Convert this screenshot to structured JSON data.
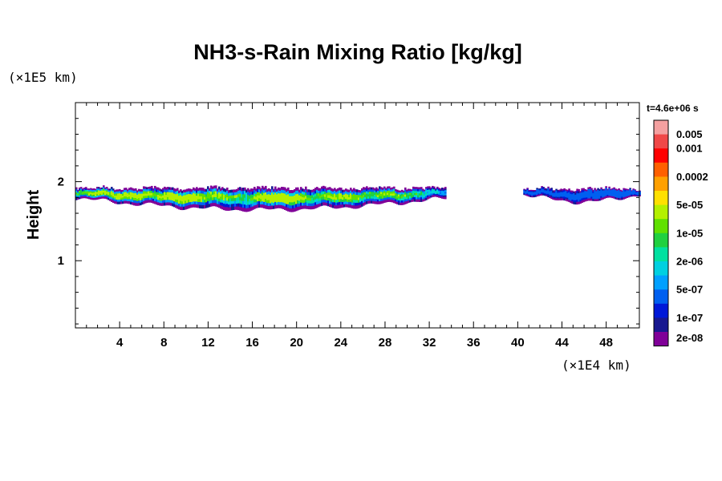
{
  "chart_data": {
    "type": "heatmap",
    "title": "NH3-s-Rain Mixing Ratio [kg/kg]",
    "ylabel": "Height",
    "xlabel": "",
    "x_unit": "(×1E4 km)",
    "y_unit": "(×1E5 km)",
    "time_label": "t=4.6e+06 s",
    "xlim": [
      0,
      51
    ],
    "ylim": [
      0.15,
      3.0
    ],
    "x_ticks": [
      4,
      8,
      12,
      16,
      20,
      24,
      28,
      32,
      36,
      40,
      44,
      48
    ],
    "x_tick_labels": [
      "4",
      "8",
      "12",
      "16",
      "20",
      "24",
      "28",
      "32",
      "36",
      "40",
      "44",
      "48"
    ],
    "y_ticks": [
      1,
      2
    ],
    "y_tick_labels": [
      "1",
      "2"
    ],
    "legend": {
      "labels": [
        "0.005",
        "0.001",
        "0.0002",
        "5e-05",
        "1e-05",
        "2e-06",
        "5e-07",
        "1e-07",
        "2e-08"
      ],
      "colors": [
        "#f4a0a0",
        "#f04848",
        "#ff0000",
        "#ff6000",
        "#ffa000",
        "#ffe000",
        "#b4f000",
        "#60e000",
        "#20d040",
        "#00e0a0",
        "#00d0e0",
        "#00a0ff",
        "#0060f0",
        "#0018d8",
        "#181890",
        "#800098"
      ]
    },
    "regions": [
      {
        "x_start": 0.0,
        "x_end": 33.5,
        "y_bottom": 1.65,
        "y_top": 1.97,
        "max_level": 6,
        "label": "main-band"
      },
      {
        "x_start": 40.5,
        "x_end": 51.0,
        "y_bottom": 1.75,
        "y_top": 1.96,
        "max_level": 12,
        "label": "right-band"
      }
    ],
    "hotspots": [
      {
        "x": 2.5,
        "y": 1.86,
        "level": 9
      },
      {
        "x": 5.0,
        "y": 1.83,
        "level": 8
      },
      {
        "x": 9.5,
        "y": 1.8,
        "level": 7
      },
      {
        "x": 13.5,
        "y": 1.85,
        "level": 9
      },
      {
        "x": 18.5,
        "y": 1.8,
        "level": 6
      },
      {
        "x": 24.0,
        "y": 1.83,
        "level": 9
      },
      {
        "x": 28.5,
        "y": 1.85,
        "level": 10
      },
      {
        "x": 49.0,
        "y": 1.86,
        "level": 11
      }
    ]
  }
}
